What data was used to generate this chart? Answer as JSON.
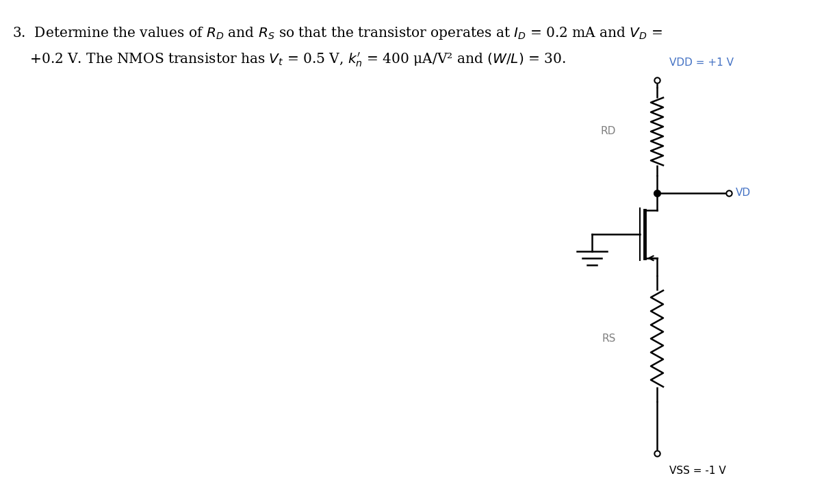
{
  "bg_color": "#ffffff",
  "line_color": "#000000",
  "text_fontsize": 14.5,
  "vdd_label": "VDD = +1 V",
  "vss_label": "VSS = -1 V",
  "rd_label": "RD",
  "rs_label": "RS",
  "vd_label": "VD",
  "vdd_color": "#4472c4",
  "vd_color": "#4472c4",
  "vss_color": "#000000",
  "circuit_label_color": "#808080",
  "lw": 1.8,
  "resistor_amplitude": 0.013,
  "resistor_teeth": 7
}
